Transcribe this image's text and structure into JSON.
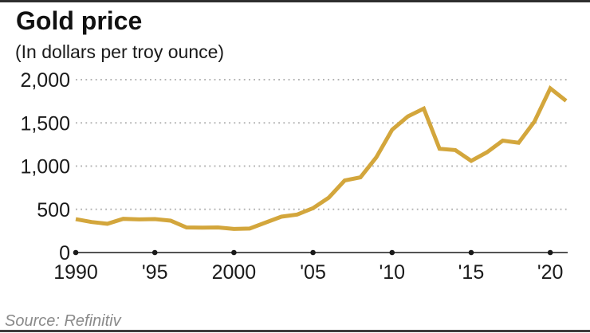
{
  "page": {
    "title": "Gold price",
    "subtitle": "(In dollars per troy ounce)",
    "source": "Source: Refinitiv"
  },
  "colors": {
    "line": "#d3a63c",
    "grid_dots": "#b3b3b3",
    "axis": "#1a1a1a",
    "tick_dot": "#1a1a1a",
    "label_text": "#1a1a1a",
    "source_text": "#8a8a8a",
    "border": "#2e2e2e"
  },
  "chart_data": {
    "type": "line",
    "title": "Gold price",
    "subtitle": "(In dollars per troy ounce)",
    "series_name": "Gold price, dollars per troy ounce",
    "x": [
      1990,
      1991,
      1992,
      1993,
      1994,
      1995,
      1996,
      1997,
      1998,
      1999,
      2000,
      2001,
      2002,
      2003,
      2004,
      2005,
      2006,
      2007,
      2008,
      2009,
      2010,
      2011,
      2012,
      2013,
      2014,
      2015,
      2016,
      2017,
      2018,
      2019,
      2020,
      2021
    ],
    "values": [
      386,
      353,
      333,
      390,
      383,
      387,
      369,
      290,
      288,
      290,
      273,
      277,
      347,
      415,
      440,
      513,
      635,
      833,
      870,
      1100,
      1420,
      1575,
      1665,
      1200,
      1185,
      1060,
      1160,
      1295,
      1270,
      1515,
      1900,
      1755
    ],
    "xlim": [
      1990,
      2021
    ],
    "ylim": [
      0,
      2000
    ],
    "y_ticks": [
      {
        "value": 0,
        "label": "0"
      },
      {
        "value": 500,
        "label": "500"
      },
      {
        "value": 1000,
        "label": "1,000"
      },
      {
        "value": 1500,
        "label": "1,500"
      },
      {
        "value": 2000,
        "label": "2,000"
      }
    ],
    "x_ticks": [
      {
        "value": 1990,
        "label": "1990"
      },
      {
        "value": 1995,
        "label": "'95"
      },
      {
        "value": 2000,
        "label": "2000"
      },
      {
        "value": 2005,
        "label": "'05"
      },
      {
        "value": 2010,
        "label": "'10"
      },
      {
        "value": 2015,
        "label": "'15"
      },
      {
        "value": 2020,
        "label": "'20"
      }
    ],
    "grid": "horizontal-dotted",
    "legend": "none"
  }
}
